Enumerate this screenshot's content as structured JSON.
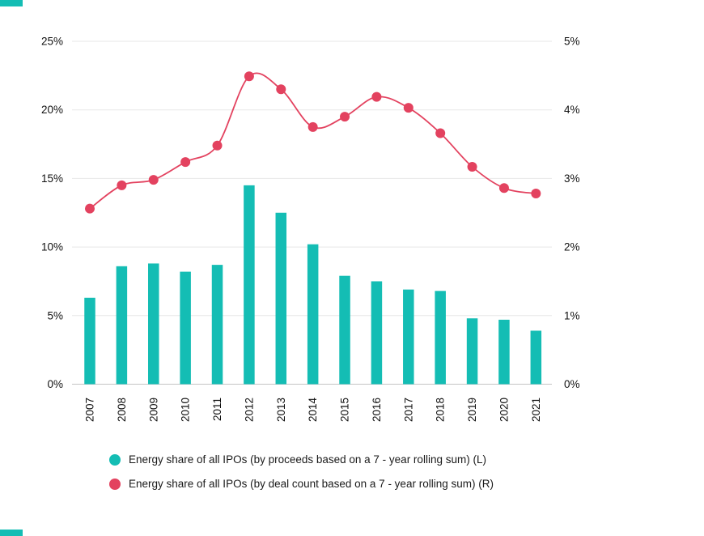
{
  "chart_data": {
    "type": "combo-bar-line",
    "categories": [
      "2007",
      "2008",
      "2009",
      "2010",
      "2011",
      "2012",
      "2013",
      "2014",
      "2015",
      "2016",
      "2017",
      "2018",
      "2019",
      "2020",
      "2021"
    ],
    "series": [
      {
        "name": "Energy share of all IPOs (by proceeds based on a 7 - year rolling sum) (L)",
        "type": "bar",
        "axis": "left",
        "color": "#14BDB4",
        "values": [
          6.3,
          8.6,
          8.8,
          8.2,
          8.7,
          14.5,
          12.5,
          10.2,
          7.9,
          7.5,
          6.9,
          6.8,
          4.8,
          4.7,
          3.9
        ]
      },
      {
        "name": "Energy share of all IPOs (by deal count based on a 7 - year rolling sum) (R)",
        "type": "line",
        "axis": "right",
        "color": "#E3425F",
        "values": [
          2.56,
          2.9,
          2.98,
          3.24,
          3.48,
          4.49,
          4.3,
          3.75,
          3.9,
          4.19,
          4.03,
          3.66,
          3.17,
          2.86,
          2.78
        ]
      }
    ],
    "left_axis": {
      "min": 0,
      "max": 25,
      "ticks": [
        "0%",
        "5%",
        "10%",
        "15%",
        "20%",
        "25%"
      ]
    },
    "right_axis": {
      "min": 0,
      "max": 5,
      "ticks": [
        "0%",
        "1%",
        "2%",
        "3%",
        "4%",
        "5%"
      ]
    },
    "grid": true,
    "legend_position": "bottom"
  },
  "colors": {
    "grid_line": "#e7e7e7",
    "baseline": "#c4c4c4",
    "axis_text": "#111111",
    "accent_teal": "#14BDB4",
    "accent_red": "#E3425F"
  }
}
